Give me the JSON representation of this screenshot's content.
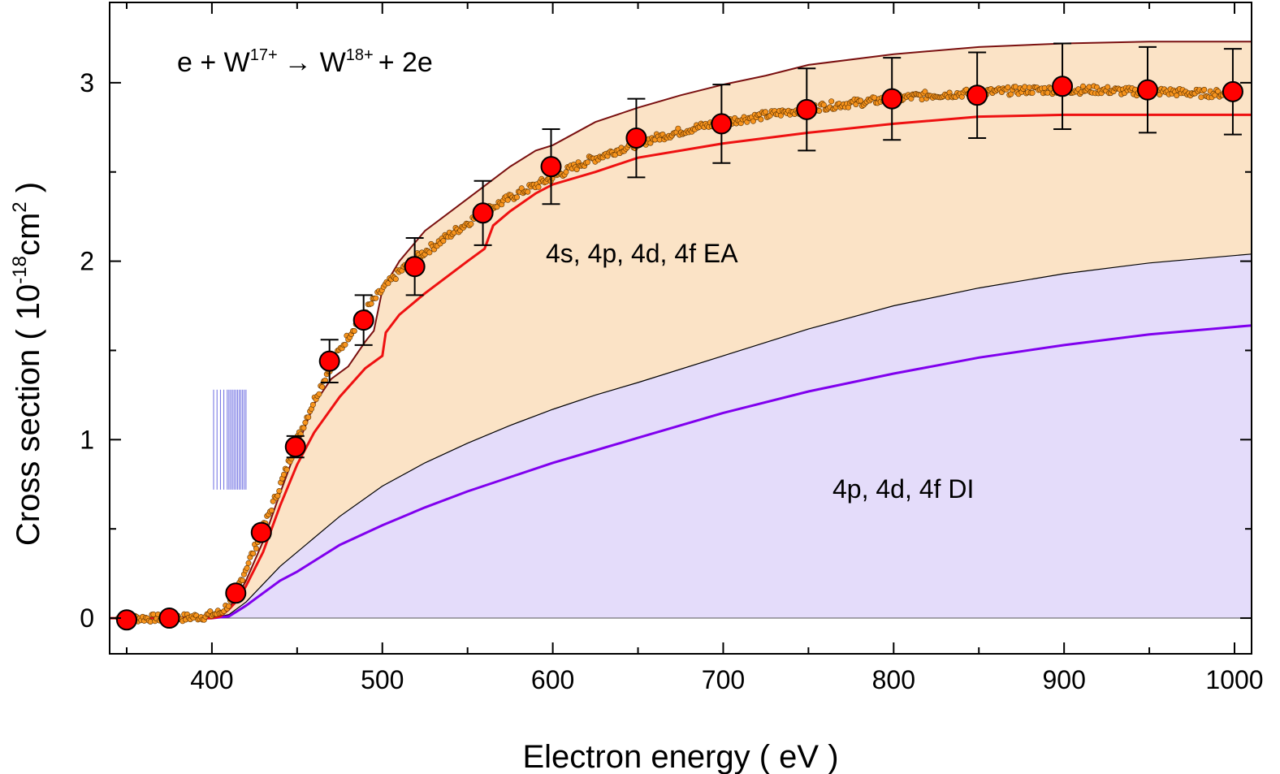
{
  "chart_data": {
    "type": "line",
    "title": "",
    "reaction": {
      "prefix": "e + W",
      "ion_charge": "17+",
      "arrow": "→",
      "product": "W",
      "product_charge": "18+",
      "suffix": "+ 2e"
    },
    "xlabel": "Electron energy  ( eV )",
    "ylabel": {
      "main": "Cross section  ( 10",
      "exp": "-18",
      "unit": "cm",
      "unit_exp": "2",
      "close": " )"
    },
    "xlim": [
      340,
      1010
    ],
    "ylim": [
      -0.2,
      3.45
    ],
    "xticks": [
      400,
      500,
      600,
      700,
      800,
      900,
      1000
    ],
    "yticks": [
      0,
      1,
      2,
      3
    ],
    "annotations": {
      "ea": "4s, 4p, 4d, 4f  EA",
      "di": "4p, 4d, 4f  DI"
    },
    "colors": {
      "ea_fill": "#fbe3c6",
      "di_fill": "#e4dcfa",
      "total_line": "#7a1010",
      "red_line": "#ee1111",
      "di_line": "#8000ee",
      "markers": "#ff0000",
      "small_markers": "#f7941d",
      "threshold_lines": "#3a3ad8"
    },
    "threshold_lines": [
      401,
      403,
      405,
      407,
      409,
      410,
      411,
      412,
      413,
      414,
      415,
      416,
      417,
      418,
      419,
      420
    ],
    "series": [
      {
        "name": "DI total (upper boundary of DI region)",
        "x": [
          340,
          400,
          410,
          420,
          430,
          440,
          450,
          475,
          500,
          525,
          550,
          575,
          600,
          625,
          650,
          700,
          750,
          800,
          850,
          900,
          950,
          1010
        ],
        "values": [
          0,
          0,
          0.02,
          0.09,
          0.19,
          0.29,
          0.37,
          0.57,
          0.74,
          0.87,
          0.98,
          1.08,
          1.17,
          1.25,
          1.32,
          1.47,
          1.62,
          1.75,
          1.85,
          1.93,
          1.99,
          2.04
        ]
      },
      {
        "name": "4p,4d,4f DI (purple line)",
        "x": [
          380,
          400,
          410,
          420,
          430,
          440,
          450,
          475,
          500,
          525,
          550,
          575,
          600,
          625,
          650,
          700,
          750,
          800,
          850,
          900,
          950,
          1010
        ],
        "values": [
          0,
          0,
          0.01,
          0.07,
          0.14,
          0.21,
          0.26,
          0.41,
          0.52,
          0.62,
          0.71,
          0.79,
          0.87,
          0.94,
          1.01,
          1.15,
          1.27,
          1.37,
          1.46,
          1.53,
          1.59,
          1.64
        ]
      },
      {
        "name": "4s,4p,4d,4f EA theory (red line)",
        "x": [
          340,
          400,
          405,
          410,
          415,
          420,
          430,
          440,
          450,
          460,
          475,
          490,
          500,
          502,
          510,
          525,
          550,
          560,
          565,
          575,
          590,
          600,
          625,
          650,
          700,
          750,
          800,
          850,
          900,
          950,
          1010
        ],
        "values": [
          0,
          0,
          0.01,
          0.05,
          0.1,
          0.18,
          0.37,
          0.63,
          0.86,
          1.04,
          1.24,
          1.4,
          1.47,
          1.6,
          1.7,
          1.82,
          2.0,
          2.07,
          2.2,
          2.28,
          2.38,
          2.43,
          2.5,
          2.58,
          2.66,
          2.72,
          2.77,
          2.81,
          2.82,
          2.82,
          2.82
        ]
      },
      {
        "name": "Total theory (dark red line)",
        "x": [
          340,
          400,
          405,
          410,
          415,
          420,
          430,
          440,
          450,
          460,
          470,
          480,
          490,
          495,
          500,
          510,
          525,
          550,
          575,
          590,
          600,
          625,
          650,
          675,
          700,
          725,
          750,
          800,
          850,
          900,
          950,
          1010
        ],
        "values": [
          0,
          0,
          0.01,
          0.06,
          0.12,
          0.21,
          0.43,
          0.7,
          0.96,
          1.2,
          1.34,
          1.41,
          1.55,
          1.61,
          1.84,
          2.0,
          2.17,
          2.35,
          2.53,
          2.62,
          2.65,
          2.78,
          2.86,
          2.93,
          2.99,
          3.04,
          3.1,
          3.16,
          3.2,
          3.22,
          3.23,
          3.23
        ]
      }
    ],
    "experiment_points": {
      "name": "Measured cross section (red circles)",
      "x": [
        350,
        375,
        414,
        429,
        449,
        469,
        489,
        519,
        559,
        599,
        649,
        699,
        749,
        799,
        849,
        899,
        949,
        999
      ],
      "values": [
        -0.01,
        0.0,
        0.14,
        0.48,
        0.96,
        1.44,
        1.67,
        1.97,
        2.27,
        2.53,
        2.69,
        2.77,
        2.85,
        2.91,
        2.93,
        2.98,
        2.96,
        2.95
      ],
      "error": [
        0,
        0,
        0,
        0.03,
        0.06,
        0.12,
        0.14,
        0.16,
        0.18,
        0.21,
        0.22,
        0.22,
        0.23,
        0.23,
        0.24,
        0.24,
        0.24,
        0.24
      ]
    },
    "scan_curve": {
      "name": "Energy scan (small orange markers)",
      "x": [
        345,
        360,
        380,
        395,
        405,
        412,
        420,
        430,
        440,
        450,
        460,
        470,
        480,
        490,
        500,
        510,
        520,
        540,
        560,
        580,
        600,
        620,
        640,
        660,
        680,
        700,
        720,
        740,
        760,
        780,
        800,
        820,
        840,
        860,
        880,
        900,
        920,
        940,
        960,
        980,
        1000
      ],
      "values": [
        0.0,
        0.0,
        0.0,
        0.01,
        0.03,
        0.1,
        0.28,
        0.5,
        0.74,
        1.0,
        1.22,
        1.42,
        1.58,
        1.72,
        1.84,
        1.94,
        2.02,
        2.15,
        2.28,
        2.38,
        2.47,
        2.56,
        2.63,
        2.69,
        2.74,
        2.78,
        2.81,
        2.84,
        2.87,
        2.89,
        2.91,
        2.93,
        2.94,
        2.95,
        2.96,
        2.96,
        2.96,
        2.95,
        2.95,
        2.94,
        2.94
      ]
    }
  }
}
